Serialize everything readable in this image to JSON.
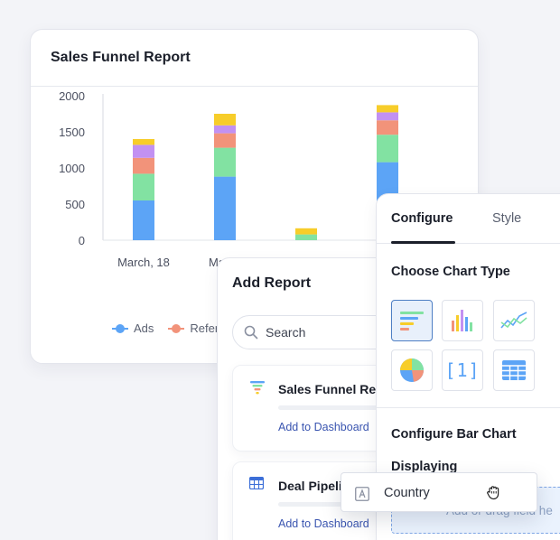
{
  "report": {
    "title": "Sales Funnel Report",
    "legend": [
      {
        "label": "Ads",
        "color": "#5ca4f6"
      },
      {
        "label": "Referra",
        "color": "#f2937a"
      }
    ]
  },
  "chart_data": {
    "type": "bar",
    "stacked": true,
    "title": "",
    "xlabel": "",
    "ylabel": "",
    "ylim": [
      0,
      2000
    ],
    "yticks": [
      "0",
      "500",
      "1000",
      "1500",
      "2000"
    ],
    "categories": [
      "March, 18",
      "March",
      "",
      ""
    ],
    "series": [
      {
        "name": "Ads",
        "color": "#5ca4f6",
        "values": [
          550,
          880,
          0,
          1080
        ]
      },
      {
        "name": "Referra",
        "color": "#82e2a2",
        "values": [
          370,
          400,
          80,
          380
        ]
      },
      {
        "name": "",
        "color": "#f2937a",
        "values": [
          220,
          200,
          0,
          200
        ]
      },
      {
        "name": "",
        "color": "#c291f2",
        "values": [
          180,
          110,
          0,
          110
        ]
      },
      {
        "name": "",
        "color": "#f7cd2a",
        "values": [
          80,
          160,
          85,
          100
        ]
      }
    ],
    "legend_position": "bottom",
    "grid": false
  },
  "add_report": {
    "title": "Add Report",
    "search_placeholder": "Search",
    "items": [
      {
        "name": "Sales Funnel Rep",
        "link": "Add to Dashboard",
        "icon": "funnel-icon"
      },
      {
        "name": "Deal Pipelin",
        "link": "Add to Dashboard",
        "icon": "table-grid-icon"
      }
    ]
  },
  "config": {
    "tabs": [
      {
        "label": "Configure"
      },
      {
        "label": "Style"
      }
    ],
    "choose_type_title": "Choose Chart Type",
    "chart_types": [
      "bar-horizontal-icon",
      "bar-vertical-icon",
      "line-chart-icon",
      "pie-chart-icon",
      "number-icon",
      "table-icon"
    ],
    "number_icon_text": "[1]",
    "configure_title": "Configure Bar Chart",
    "displaying_label": "Displaying",
    "drop_zone_text": "Add or drag field he"
  },
  "drag_chip": {
    "label": "Country",
    "icon": "text-field-icon"
  },
  "colors": {
    "accent": "#3a55b0",
    "drop_border": "#7ea6e6",
    "selected_bg": "#e8f0fb"
  }
}
